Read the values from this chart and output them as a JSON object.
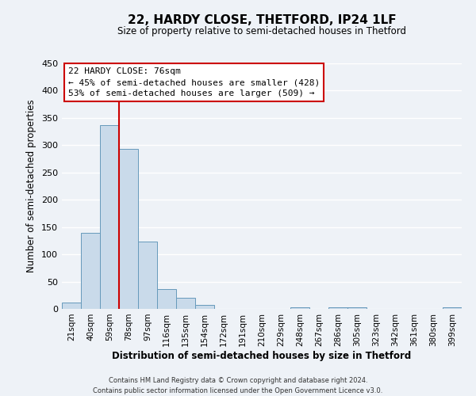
{
  "title": "22, HARDY CLOSE, THETFORD, IP24 1LF",
  "subtitle": "Size of property relative to semi-detached houses in Thetford",
  "xlabel": "Distribution of semi-detached houses by size in Thetford",
  "ylabel": "Number of semi-detached properties",
  "bar_labels": [
    "21sqm",
    "40sqm",
    "59sqm",
    "78sqm",
    "97sqm",
    "116sqm",
    "135sqm",
    "154sqm",
    "172sqm",
    "191sqm",
    "210sqm",
    "229sqm",
    "248sqm",
    "267sqm",
    "286sqm",
    "305sqm",
    "323sqm",
    "342sqm",
    "361sqm",
    "380sqm",
    "399sqm"
  ],
  "bar_heights": [
    12,
    139,
    337,
    293,
    124,
    36,
    20,
    7,
    0,
    0,
    0,
    0,
    3,
    0,
    3,
    3,
    0,
    0,
    0,
    0,
    3
  ],
  "bar_color": "#c9daea",
  "bar_edge_color": "#6699bb",
  "vline_x": 2.5,
  "vline_color": "#cc0000",
  "ylim": [
    0,
    450
  ],
  "yticks": [
    0,
    50,
    100,
    150,
    200,
    250,
    300,
    350,
    400,
    450
  ],
  "annotation_title": "22 HARDY CLOSE: 76sqm",
  "annotation_line1": "← 45% of semi-detached houses are smaller (428)",
  "annotation_line2": "53% of semi-detached houses are larger (509) →",
  "annotation_box_facecolor": "#ffffff",
  "annotation_box_edgecolor": "#cc0000",
  "footer_line1": "Contains HM Land Registry data © Crown copyright and database right 2024.",
  "footer_line2": "Contains public sector information licensed under the Open Government Licence v3.0.",
  "background_color": "#eef2f7",
  "grid_color": "#ffffff",
  "title_fontsize": 11,
  "subtitle_fontsize": 8.5,
  "xlabel_fontsize": 8.5,
  "ylabel_fontsize": 8.5,
  "tick_fontsize": 7.5,
  "ytick_fontsize": 8,
  "ann_fontsize": 8,
  "footer_fontsize": 6
}
